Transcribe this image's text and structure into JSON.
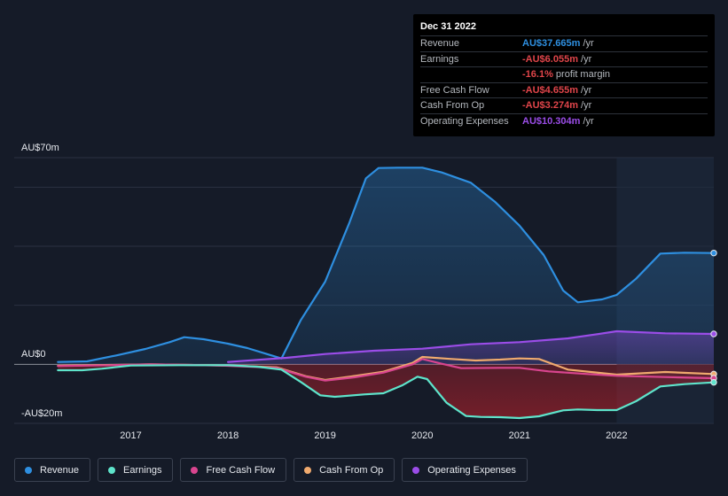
{
  "tooltip": {
    "date": "Dec 31 2022",
    "rows": [
      {
        "label": "Revenue",
        "value": "AU$37.665m",
        "unit": " /yr",
        "color": "#2e8fe0"
      },
      {
        "label": "Earnings",
        "value": "-AU$6.055m",
        "unit": " /yr",
        "color": "#e0454a"
      },
      {
        "label": "",
        "value": "-16.1%",
        "unit": " profit margin",
        "color": "#e0454a"
      },
      {
        "label": "Free Cash Flow",
        "value": "-AU$4.655m",
        "unit": " /yr",
        "color": "#e0454a"
      },
      {
        "label": "Cash From Op",
        "value": "-AU$3.274m",
        "unit": " /yr",
        "color": "#e0454a"
      },
      {
        "label": "Operating Expenses",
        "value": "AU$10.304m",
        "unit": " /yr",
        "color": "#9b4de8"
      }
    ]
  },
  "chart_data": {
    "type": "area",
    "title": "",
    "xlabel": "",
    "ylabel": "",
    "ylim": [
      -20,
      70
    ],
    "y_tick_labels": [
      {
        "value": 70,
        "label": "AU$70m"
      },
      {
        "value": 0,
        "label": "AU$0"
      },
      {
        "value": -20,
        "label": "-AU$20m"
      }
    ],
    "x_tick_labels": [
      {
        "value": 2017.0,
        "label": "2017"
      },
      {
        "value": 2018.0,
        "label": "2018"
      },
      {
        "value": 2019.0,
        "label": "2019"
      },
      {
        "value": 2020.0,
        "label": "2020"
      },
      {
        "value": 2021.0,
        "label": "2021"
      },
      {
        "value": 2022.0,
        "label": "2022"
      }
    ],
    "xlim": [
      2015.8,
      2023.0
    ],
    "highlight_start": 2022.0,
    "series": [
      {
        "name": "Revenue",
        "color": "#2e8fe0",
        "fill": true,
        "points": [
          [
            2016.25,
            0.8
          ],
          [
            2016.55,
            1
          ],
          [
            2016.85,
            3
          ],
          [
            2017.15,
            5.2
          ],
          [
            2017.4,
            7.5
          ],
          [
            2017.55,
            9.2
          ],
          [
            2017.75,
            8.5
          ],
          [
            2018.0,
            7
          ],
          [
            2018.2,
            5.5
          ],
          [
            2018.4,
            3.5
          ],
          [
            2018.55,
            2
          ],
          [
            2018.75,
            15
          ],
          [
            2019.0,
            28
          ],
          [
            2019.25,
            48
          ],
          [
            2019.42,
            63
          ],
          [
            2019.55,
            66.5
          ],
          [
            2019.75,
            66.6
          ],
          [
            2020.0,
            66.6
          ],
          [
            2020.2,
            65
          ],
          [
            2020.5,
            61.5
          ],
          [
            2020.75,
            55
          ],
          [
            2021.0,
            47
          ],
          [
            2021.25,
            37
          ],
          [
            2021.45,
            25
          ],
          [
            2021.6,
            21
          ],
          [
            2021.85,
            22
          ],
          [
            2022.0,
            23.5
          ],
          [
            2022.2,
            29
          ],
          [
            2022.45,
            37.5
          ],
          [
            2022.7,
            37.8
          ],
          [
            2023.0,
            37.7
          ]
        ]
      },
      {
        "name": "Operating Expenses",
        "color": "#9b4de8",
        "fill": true,
        "points": [
          [
            2018.0,
            0.8
          ],
          [
            2018.3,
            1.5
          ],
          [
            2018.6,
            2.2
          ],
          [
            2019.0,
            3.5
          ],
          [
            2019.5,
            4.6
          ],
          [
            2020.0,
            5.3
          ],
          [
            2020.5,
            6.8
          ],
          [
            2021.0,
            7.5
          ],
          [
            2021.5,
            8.8
          ],
          [
            2021.8,
            10.2
          ],
          [
            2022.0,
            11.2
          ],
          [
            2022.5,
            10.5
          ],
          [
            2023.0,
            10.3
          ]
        ]
      },
      {
        "name": "Cash From Op",
        "color": "#f0aa6e",
        "fill": false,
        "points": [
          [
            2016.25,
            -0.5
          ],
          [
            2016.8,
            -0.2
          ],
          [
            2017.2,
            0
          ],
          [
            2017.6,
            -0.2
          ],
          [
            2018.0,
            -0.4
          ],
          [
            2018.5,
            -1
          ],
          [
            2018.8,
            -4
          ],
          [
            2019.0,
            -5.3
          ],
          [
            2019.25,
            -4.2
          ],
          [
            2019.6,
            -2.5
          ],
          [
            2019.9,
            0.5
          ],
          [
            2020.0,
            2.5
          ],
          [
            2020.3,
            1.8
          ],
          [
            2020.55,
            1.3
          ],
          [
            2020.8,
            1.6
          ],
          [
            2021.0,
            2
          ],
          [
            2021.2,
            1.8
          ],
          [
            2021.5,
            -1.8
          ],
          [
            2022.0,
            -3.5
          ],
          [
            2022.5,
            -2.6
          ],
          [
            2023.0,
            -3.3
          ]
        ]
      },
      {
        "name": "Free Cash Flow",
        "color": "#d9458f",
        "fill": false,
        "points": [
          [
            2016.25,
            -0.6
          ],
          [
            2016.8,
            -0.3
          ],
          [
            2017.2,
            0
          ],
          [
            2017.6,
            -0.2
          ],
          [
            2018.0,
            -0.5
          ],
          [
            2018.5,
            -1.2
          ],
          [
            2018.8,
            -4.2
          ],
          [
            2019.0,
            -5.5
          ],
          [
            2019.3,
            -4.4
          ],
          [
            2019.6,
            -2.8
          ],
          [
            2019.9,
            0
          ],
          [
            2020.0,
            1.8
          ],
          [
            2020.2,
            0.2
          ],
          [
            2020.4,
            -1.3
          ],
          [
            2020.8,
            -1.2
          ],
          [
            2021.0,
            -1.2
          ],
          [
            2021.3,
            -2.4
          ],
          [
            2021.7,
            -3.3
          ],
          [
            2022.0,
            -3.9
          ],
          [
            2022.5,
            -4.3
          ],
          [
            2023.0,
            -4.7
          ]
        ]
      },
      {
        "name": "Earnings",
        "color": "#5ee4cb",
        "fill": true,
        "points": [
          [
            2016.25,
            -2
          ],
          [
            2016.5,
            -2
          ],
          [
            2016.7,
            -1.5
          ],
          [
            2017.0,
            -0.4
          ],
          [
            2017.5,
            -0.3
          ],
          [
            2018.0,
            -0.3
          ],
          [
            2018.3,
            -0.8
          ],
          [
            2018.55,
            -1.8
          ],
          [
            2018.75,
            -6
          ],
          [
            2018.95,
            -10.5
          ],
          [
            2019.1,
            -11
          ],
          [
            2019.4,
            -10.2
          ],
          [
            2019.6,
            -9.8
          ],
          [
            2019.8,
            -7
          ],
          [
            2019.95,
            -4.2
          ],
          [
            2020.05,
            -5
          ],
          [
            2020.25,
            -13
          ],
          [
            2020.45,
            -17.5
          ],
          [
            2020.6,
            -17.8
          ],
          [
            2020.8,
            -17.9
          ],
          [
            2021.0,
            -18.2
          ],
          [
            2021.2,
            -17.6
          ],
          [
            2021.45,
            -15.6
          ],
          [
            2021.6,
            -15.3
          ],
          [
            2021.8,
            -15.5
          ],
          [
            2022.0,
            -15.5
          ],
          [
            2022.2,
            -12.5
          ],
          [
            2022.45,
            -7.5
          ],
          [
            2022.7,
            -6.7
          ],
          [
            2023.0,
            -6.1
          ]
        ]
      }
    ]
  },
  "legend": [
    {
      "label": "Revenue",
      "color": "#2e8fe0"
    },
    {
      "label": "Earnings",
      "color": "#5ee4cb"
    },
    {
      "label": "Free Cash Flow",
      "color": "#d9458f"
    },
    {
      "label": "Cash From Op",
      "color": "#f0aa6e"
    },
    {
      "label": "Operating Expenses",
      "color": "#9b4de8"
    }
  ]
}
